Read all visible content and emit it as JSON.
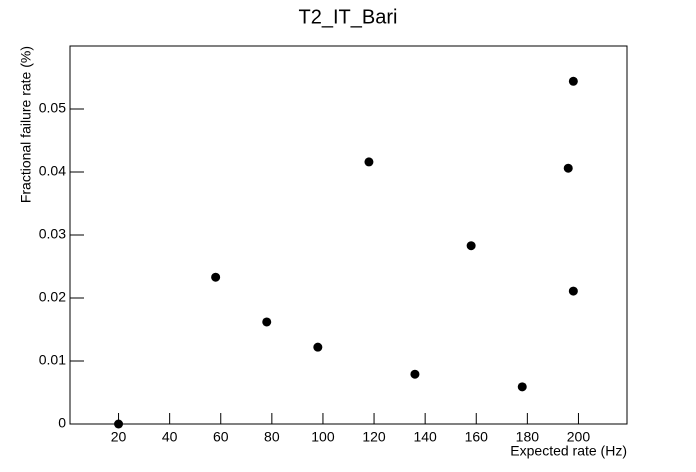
{
  "chart_data": {
    "type": "scatter",
    "title": "T2_IT_Bari",
    "xlabel": "Expected rate (Hz)",
    "ylabel": "Fractional failure rate (%)",
    "x": [
      20,
      58,
      78,
      98,
      118,
      136,
      158,
      178,
      196,
      198,
      198
    ],
    "values": [
      0,
      0.0233,
      0.0162,
      0.0122,
      0.0416,
      0.0079,
      0.0283,
      0.0059,
      0.0406,
      0.0544,
      0.0211
    ],
    "color": "#000000",
    "xlim": [
      1,
      219
    ],
    "xticks": [
      20,
      40,
      60,
      80,
      100,
      120,
      140,
      160,
      180,
      200
    ],
    "ylim": [
      0,
      0.06
    ],
    "yticks": [
      0,
      0.01,
      0.02,
      0.03,
      0.04,
      0.05
    ]
  }
}
